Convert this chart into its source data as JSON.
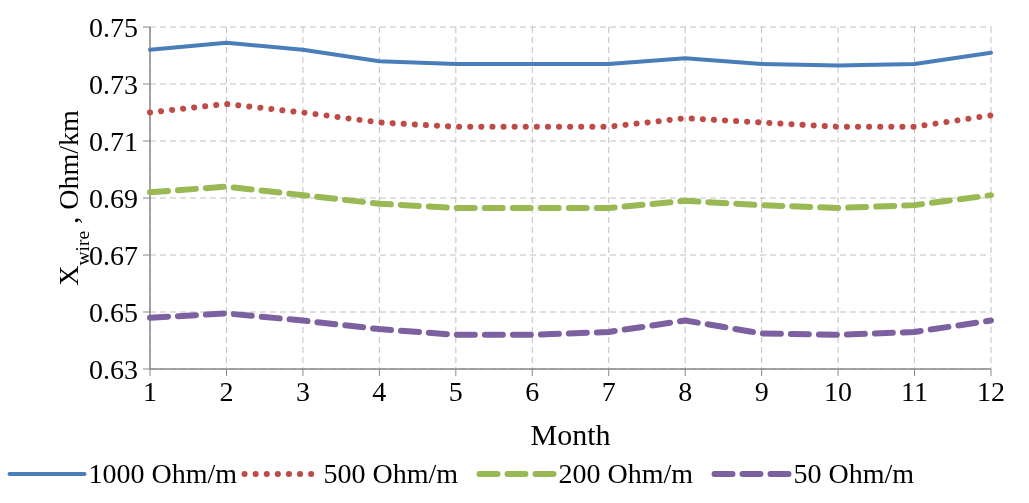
{
  "chart_data": {
    "type": "line",
    "xlabel": "Month",
    "ylabel": "X$_{wire}$ , Ohm/km",
    "x": [
      1,
      2,
      3,
      4,
      5,
      6,
      7,
      8,
      9,
      10,
      11,
      12
    ],
    "xlim": [
      1,
      12
    ],
    "xticks": [
      1,
      2,
      3,
      4,
      5,
      6,
      7,
      8,
      9,
      10,
      11,
      12
    ],
    "ylim": [
      0.63,
      0.75
    ],
    "yticks": [
      0.63,
      0.65,
      0.67,
      0.69,
      0.71,
      0.73,
      0.75
    ],
    "grid": true,
    "legend": "bottom",
    "series": [
      {
        "name": "1000 Ohm/m",
        "color": "#4a7ebb",
        "line_style": "solid",
        "values": [
          0.742,
          0.7445,
          0.742,
          0.738,
          0.737,
          0.737,
          0.737,
          0.739,
          0.737,
          0.7365,
          0.737,
          0.741
        ]
      },
      {
        "name": "500 Ohm/m",
        "color": "#be4b48",
        "line_style": "dotted",
        "values": [
          0.72,
          0.723,
          0.72,
          0.7165,
          0.715,
          0.715,
          0.715,
          0.718,
          0.7165,
          0.715,
          0.715,
          0.719
        ]
      },
      {
        "name": "200 Ohm/m",
        "color": "#98b954",
        "line_style": "dashed",
        "values": [
          0.692,
          0.694,
          0.691,
          0.688,
          0.6865,
          0.6865,
          0.6865,
          0.689,
          0.6875,
          0.6865,
          0.6875,
          0.691
        ]
      },
      {
        "name": "50 Ohm/m",
        "color": "#7d60a0",
        "line_style": "dashed",
        "values": [
          0.648,
          0.6495,
          0.647,
          0.644,
          0.642,
          0.642,
          0.643,
          0.647,
          0.6425,
          0.642,
          0.643,
          0.647
        ]
      }
    ]
  }
}
